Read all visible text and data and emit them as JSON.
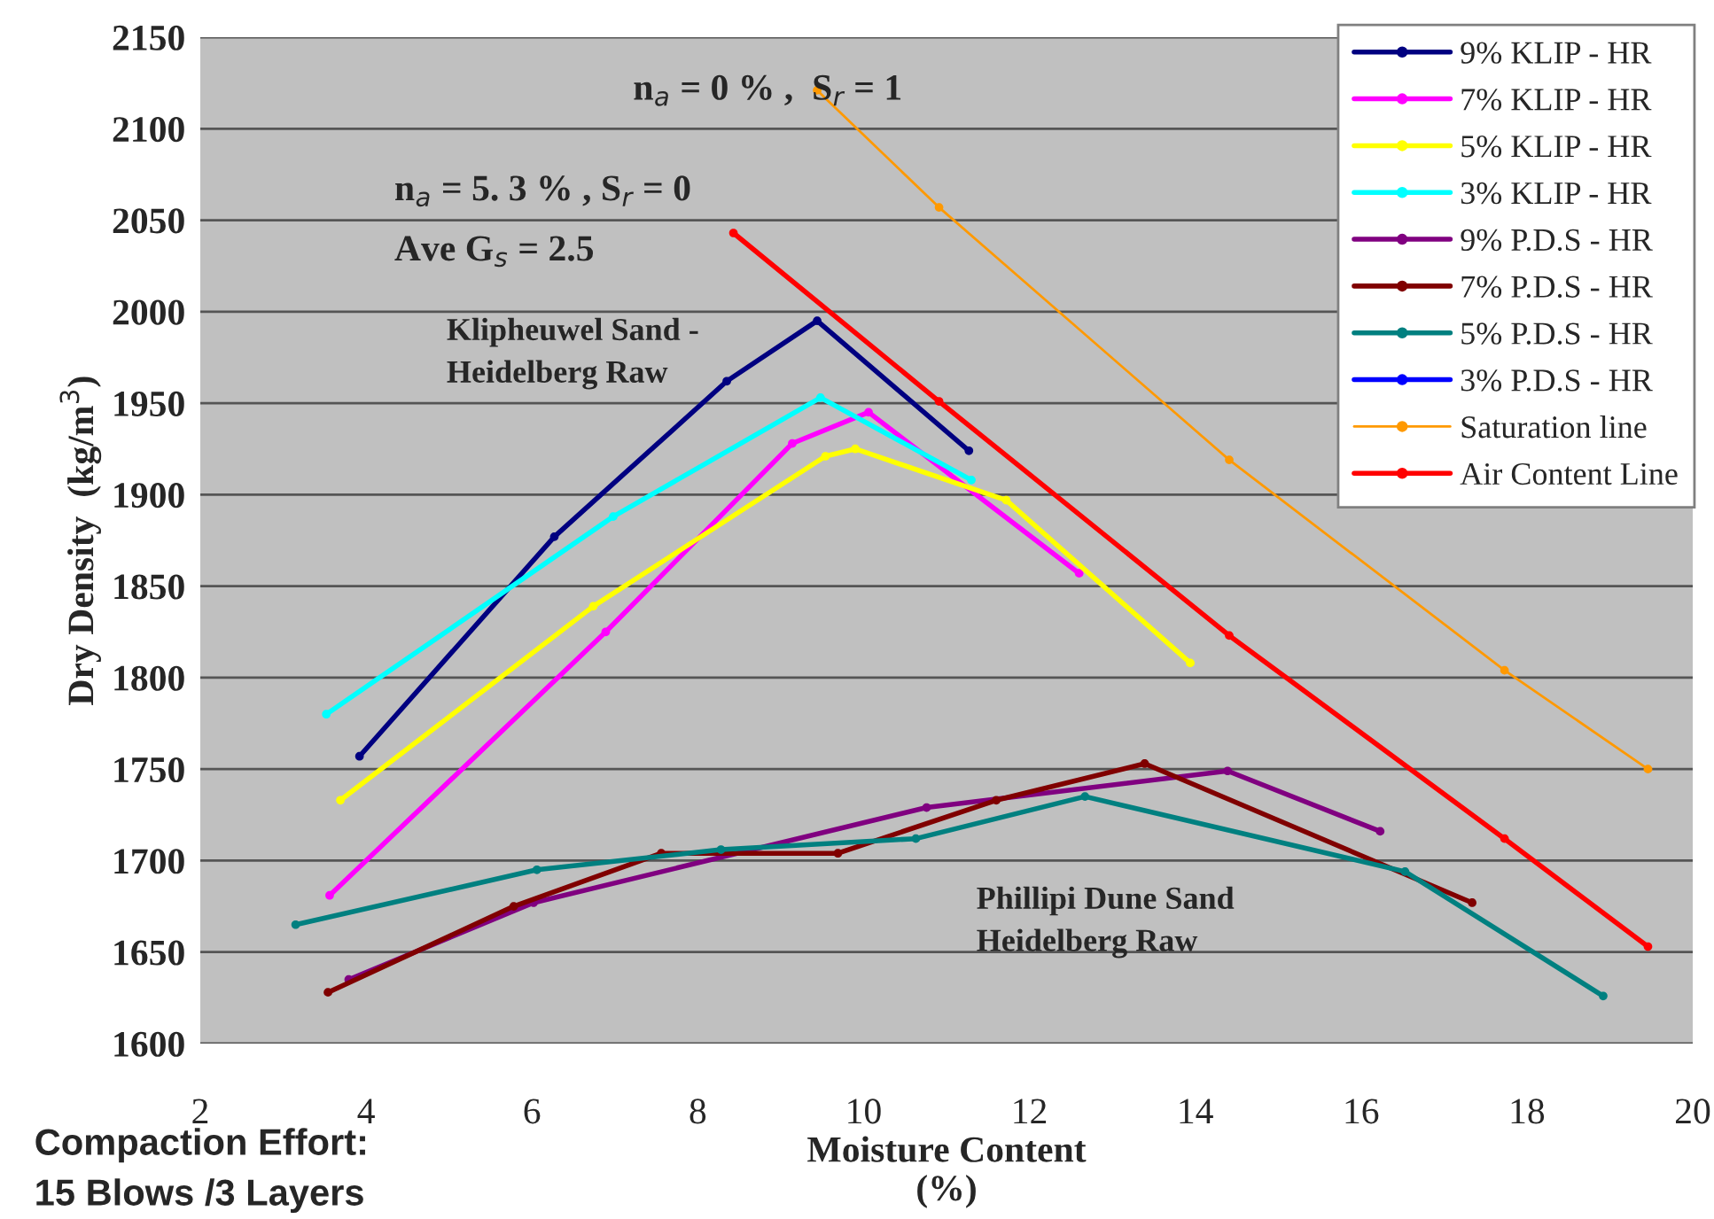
{
  "chart_data": {
    "type": "line",
    "xlabel": "Moisture Content\n(%)",
    "ylabel": "Dry Density  (kg/m$^{3}$)",
    "xlim": [
      2,
      20
    ],
    "xticks": [
      2,
      4,
      6,
      8,
      10,
      12,
      14,
      16,
      18,
      20
    ],
    "ylim": [
      1600,
      2150
    ],
    "yticks": [
      1600,
      1650,
      1700,
      1750,
      1800,
      1850,
      1900,
      1950,
      2000,
      2050,
      2100,
      2150
    ],
    "grid": "y",
    "legend": "top right",
    "marker": "circle",
    "line_style": "solid",
    "annotations": [
      "n$_{a}$ = 0 % ,  S$_{r}$ = 1",
      "n$_{a}$ = 5. 3 % , S$_{r}$ = 0",
      "Ave G$_{s}$ = 2.5",
      "Klipheuwel Sand -\nHeidelberg Raw",
      "Phillipi Dune Sand\nHeidelberg Raw",
      "Compaction Effort:\n15 Blows /3 Layers"
    ],
    "series": [
      {
        "name": "9% KLIP - HR",
        "color": "#000080",
        "x": [
          3.92,
          6.27,
          8.35,
          9.44,
          11.27
        ],
        "values": [
          1757,
          1877,
          1962,
          1995,
          1924
        ]
      },
      {
        "name": "7% KLIP - HR",
        "color": "#ff00ff",
        "x": [
          3.56,
          6.89,
          9.14,
          10.06,
          12.6
        ],
        "values": [
          1681,
          1825,
          1928,
          1945,
          1857
        ]
      },
      {
        "name": "5% KLIP - HR",
        "color": "#ffff00",
        "x": [
          3.69,
          6.74,
          9.54,
          9.9,
          11.72,
          13.94
        ],
        "values": [
          1733,
          1839,
          1921,
          1925,
          1897,
          1808
        ]
      },
      {
        "name": "3% KLIP - HR",
        "color": "#00ffff",
        "x": [
          3.52,
          6.98,
          9.48,
          11.3
        ],
        "values": [
          1780,
          1888,
          1953,
          1908
        ]
      },
      {
        "name": "9% P.D.S - HR",
        "color": "#800080",
        "x": [
          3.79,
          6.02,
          10.76,
          14.39,
          16.23
        ],
        "values": [
          1635,
          1677,
          1729,
          1749,
          1716
        ]
      },
      {
        "name": "7% P.D.S - HR",
        "color": "#800000",
        "x": [
          3.54,
          5.78,
          7.56,
          9.69,
          11.6,
          13.39,
          17.34
        ],
        "values": [
          1628,
          1675,
          1704,
          1704,
          1733,
          1753,
          1677
        ]
      },
      {
        "name": "5% P.D.S - HR",
        "color": "#008080",
        "x": [
          3.15,
          6.06,
          8.28,
          10.63,
          12.67,
          16.53,
          18.92
        ],
        "values": [
          1665,
          1695,
          1706,
          1712,
          1735,
          1694,
          1626
        ]
      },
      {
        "name": "3% P.D.S - HR",
        "color": "#0000ff"
      },
      {
        "name": "Saturation line",
        "color": "#ff9900",
        "x": [
          9.44,
          10.91,
          14.41,
          17.73,
          19.46
        ],
        "values": [
          2121,
          2057,
          1919,
          1804,
          1750
        ]
      },
      {
        "name": "Air Content Line",
        "color": "#ff0000",
        "x": [
          8.43,
          10.91,
          14.41,
          17.73,
          19.46
        ],
        "values": [
          2043,
          1951,
          1823,
          1712,
          1653
        ]
      }
    ]
  }
}
